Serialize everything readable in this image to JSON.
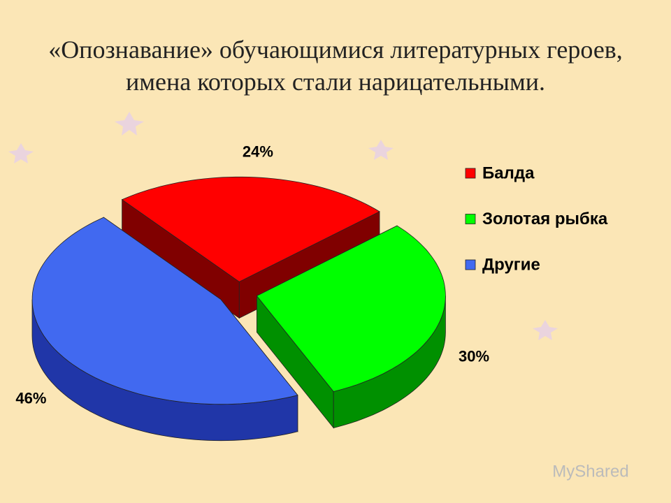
{
  "chart_data": {
    "type": "pie3d",
    "title": "«Опознавание» обучающимися литературных героев, имена которых стали нарицательными.",
    "categories": [
      "Балда",
      "Золотая рыбка",
      "Другие"
    ],
    "values": [
      24,
      30,
      46
    ],
    "value_labels": [
      "24%",
      "30%",
      "46%"
    ],
    "colors": [
      "#ff0000",
      "#00ff00",
      "#4169f0"
    ],
    "side_colors": [
      "#800000",
      "#009000",
      "#2036a8"
    ],
    "legend": "right"
  },
  "watermark": "MyShared"
}
